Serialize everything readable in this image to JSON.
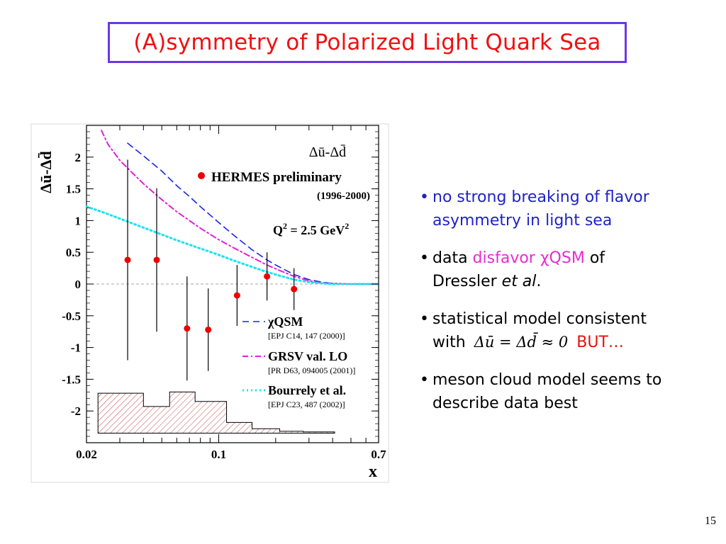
{
  "slide": {
    "title": "(A)symmetry of Polarized Light Quark Sea",
    "page_number": "15",
    "colors": {
      "title": "#ee1111",
      "title_border": "#6a38e8",
      "blue_text": "#1f22c8",
      "pink_text": "#e72bd2",
      "red_text": "#e3120b"
    }
  },
  "bullets": {
    "b1": {
      "marker": "•",
      "text": "no strong breaking of flavor asymmetry in light sea"
    },
    "b2": {
      "marker": "•",
      "pre": "data ",
      "highlight": "disfavor ",
      "model": "χQSM",
      "post": " of",
      "line2_pre": "Dressler ",
      "line2_italic": "et al",
      "line2_post": "."
    },
    "b3": {
      "marker": "•",
      "line1": "statistical model consistent",
      "line2_pre": "with",
      "formula": "Δū = Δd̄ ≈ 0",
      "highlight": "BUT…"
    },
    "b4": {
      "marker": "•",
      "text": "meson cloud model seems to describe data best"
    }
  },
  "chart_data": {
    "type": "scatter",
    "x_scale": "log",
    "xlim": [
      0.02,
      0.7
    ],
    "ylim": [
      -2.5,
      2.5
    ],
    "grid": false,
    "ylabel": "Δū-Δd̄",
    "xlabel": "x",
    "plot_label": "Δū-Δd̄",
    "x_tick_labels": [
      "0.02",
      "0.1",
      "0.7"
    ],
    "x_ticks": [
      0.02,
      0.1,
      0.7
    ],
    "y_ticks": [
      2,
      1.5,
      1,
      0.5,
      0,
      -0.5,
      -1,
      -1.5,
      -2
    ],
    "y_tick_labels": [
      "2",
      "1.5",
      "1",
      "0.5",
      "0",
      "-0.5",
      "-1",
      "-1.5",
      "-2"
    ],
    "annotations": {
      "hermes_label": "HERMES preliminary",
      "years": "(1996-2000)",
      "q2": "Q² = 2.5 GeV²"
    },
    "points": {
      "name": "HERMES preliminary",
      "color": "#ee0000",
      "x": [
        0.033,
        0.047,
        0.068,
        0.088,
        0.125,
        0.18,
        0.25
      ],
      "y": [
        0.38,
        0.38,
        -0.7,
        -0.72,
        -0.18,
        0.12,
        -0.08
      ],
      "err": [
        1.58,
        1.13,
        0.82,
        0.65,
        0.48,
        0.38,
        0.33
      ]
    },
    "series": [
      {
        "name": "χQSM",
        "ref": "[EPJ C14, 147 (2000)]",
        "style": "dashed",
        "color": "#1a25e8",
        "x": [
          0.033,
          0.04,
          0.05,
          0.06,
          0.07,
          0.08,
          0.1,
          0.12,
          0.15,
          0.18,
          0.2,
          0.25,
          0.3,
          0.35,
          0.4,
          0.5,
          0.6,
          0.7
        ],
        "y": [
          2.22,
          2.02,
          1.78,
          1.55,
          1.38,
          1.22,
          0.97,
          0.77,
          0.54,
          0.38,
          0.3,
          0.15,
          0.07,
          0.03,
          0.01,
          0,
          0,
          0
        ]
      },
      {
        "name": "GRSV val. LO",
        "ref": "[PR D63, 094005 (2001)]",
        "style": "dash-dot",
        "color": "#e020d8",
        "x": [
          0.024,
          0.026,
          0.03,
          0.035,
          0.04,
          0.05,
          0.06,
          0.08,
          0.1,
          0.12,
          0.15,
          0.18,
          0.2,
          0.25,
          0.3,
          0.35,
          0.4,
          0.5,
          0.7
        ],
        "y": [
          2.42,
          2.2,
          1.95,
          1.75,
          1.58,
          1.33,
          1.14,
          0.88,
          0.7,
          0.57,
          0.42,
          0.3,
          0.24,
          0.12,
          0.05,
          0.02,
          0.01,
          0,
          0
        ]
      },
      {
        "name": "Bourrely et al.",
        "ref": "[EPJ C23, 487 (2002)]",
        "style": "dotted",
        "color": "#18e4f0",
        "x": [
          0.02,
          0.025,
          0.03,
          0.04,
          0.05,
          0.06,
          0.08,
          0.1,
          0.12,
          0.15,
          0.18,
          0.2,
          0.25,
          0.3,
          0.35,
          0.4,
          0.5,
          0.7
        ],
        "y": [
          1.22,
          1.12,
          1.03,
          0.89,
          0.78,
          0.69,
          0.56,
          0.46,
          0.37,
          0.27,
          0.19,
          0.15,
          0.07,
          0.03,
          0.01,
          0,
          0,
          0
        ]
      }
    ],
    "systematic_band": {
      "color": "#c03030",
      "x_edges": [
        0.023,
        0.04,
        0.055,
        0.075,
        0.11,
        0.15,
        0.21,
        0.28,
        0.41
      ],
      "top": [
        -1.72,
        -1.93,
        -1.7,
        -1.85,
        -2.18,
        -2.28,
        -2.32,
        -2.33
      ],
      "bottom": -2.35
    }
  }
}
